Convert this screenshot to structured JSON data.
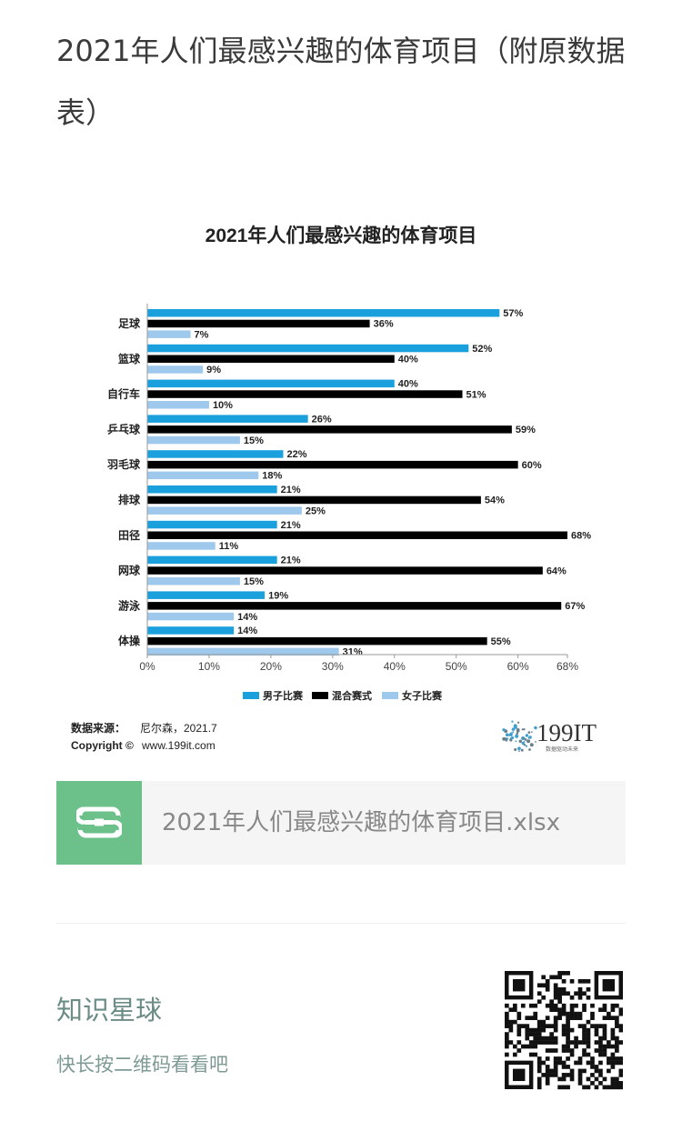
{
  "page": {
    "title": "2021年人们最感兴趣的体育项目（附原数据表）"
  },
  "chart_data": {
    "type": "bar",
    "orientation": "horizontal",
    "title": "2021年人们最感兴趣的体育项目",
    "categories": [
      "足球",
      "篮球",
      "自行车",
      "乒乓球",
      "羽毛球",
      "排球",
      "田径",
      "网球",
      "游泳",
      "体操"
    ],
    "series": [
      {
        "name": "男子比赛",
        "color": "#1aa0dc",
        "values": [
          57,
          52,
          40,
          26,
          22,
          21,
          21,
          21,
          19,
          14
        ]
      },
      {
        "name": "混合赛式",
        "color": "#000000",
        "values": [
          36,
          40,
          51,
          59,
          60,
          54,
          68,
          64,
          67,
          55
        ]
      },
      {
        "name": "女子比赛",
        "color": "#9ec9ec",
        "values": [
          7,
          9,
          10,
          15,
          18,
          25,
          11,
          15,
          14,
          31
        ]
      }
    ],
    "xlim": [
      0,
      68
    ],
    "xticks": [
      "0%",
      "10%",
      "20%",
      "30%",
      "40%",
      "50%",
      "60%",
      "68%"
    ],
    "xtick_values": [
      0,
      10,
      20,
      30,
      40,
      50,
      60,
      68
    ],
    "value_suffix": "%",
    "legend_position": "bottom",
    "source_label": "数据来源：",
    "source_text": "尼尔森，2021.7",
    "copyright_label": "Copyright ©",
    "copyright_text": "www.199it.com",
    "logo_text": "199IT",
    "logo_tagline": "数据驱动未来"
  },
  "attachment": {
    "icon": "spreadsheet-s-icon",
    "icon_color": "#6cc08a",
    "filename": "2021年人们最感兴趣的体育项目.xlsx"
  },
  "promo": {
    "title": "知识星球",
    "subtitle": "快长按二维码看看吧",
    "qr_icon": "qr-code-icon"
  }
}
